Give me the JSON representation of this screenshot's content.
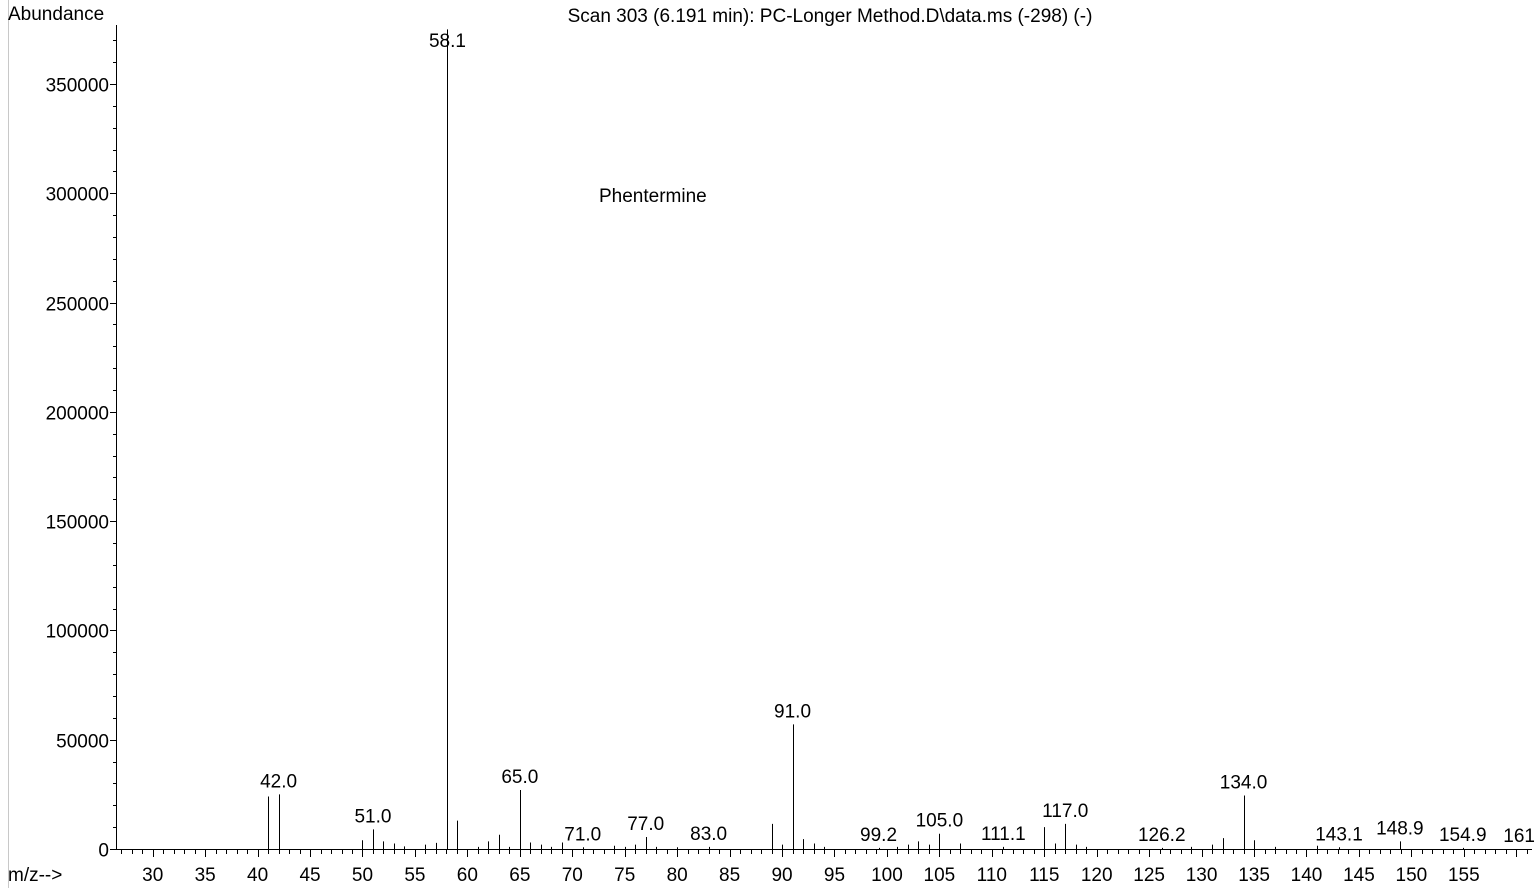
{
  "chart_data": {
    "type": "bar",
    "title": "Scan 303 (6.191 min): PC-Longer Method.D\\data.ms (-298) (-)",
    "ylabel": "Abundance",
    "xlabel": "m/z-->",
    "annotation": "Phentermine",
    "xlim": [
      26.5,
      161.5
    ],
    "ylim": [
      0,
      377000
    ],
    "x_ticks": [
      30,
      35,
      40,
      45,
      50,
      55,
      60,
      65,
      70,
      75,
      80,
      85,
      90,
      95,
      100,
      105,
      110,
      115,
      120,
      125,
      130,
      135,
      140,
      145,
      150,
      155
    ],
    "y_ticks": [
      0,
      50000,
      100000,
      150000,
      200000,
      250000,
      300000,
      350000
    ],
    "peaks": [
      {
        "mz": 41.0,
        "abundance": 24000
      },
      {
        "mz": 42.0,
        "abundance": 25000
      },
      {
        "mz": 50.0,
        "abundance": 4000
      },
      {
        "mz": 51.0,
        "abundance": 9000
      },
      {
        "mz": 52.0,
        "abundance": 3500
      },
      {
        "mz": 53.0,
        "abundance": 2500
      },
      {
        "mz": 54.0,
        "abundance": 1200
      },
      {
        "mz": 56.0,
        "abundance": 2000
      },
      {
        "mz": 57.0,
        "abundance": 2800
      },
      {
        "mz": 58.1,
        "abundance": 375000
      },
      {
        "mz": 59.0,
        "abundance": 13000
      },
      {
        "mz": 61.0,
        "abundance": 1000
      },
      {
        "mz": 62.0,
        "abundance": 3500
      },
      {
        "mz": 63.0,
        "abundance": 6500
      },
      {
        "mz": 64.0,
        "abundance": 1000
      },
      {
        "mz": 65.0,
        "abundance": 27000
      },
      {
        "mz": 66.0,
        "abundance": 3000
      },
      {
        "mz": 67.0,
        "abundance": 2000
      },
      {
        "mz": 68.0,
        "abundance": 1000
      },
      {
        "mz": 69.0,
        "abundance": 3000
      },
      {
        "mz": 71.0,
        "abundance": 800
      },
      {
        "mz": 74.0,
        "abundance": 1500
      },
      {
        "mz": 75.0,
        "abundance": 1000
      },
      {
        "mz": 76.0,
        "abundance": 2000
      },
      {
        "mz": 77.0,
        "abundance": 5500
      },
      {
        "mz": 78.0,
        "abundance": 1000
      },
      {
        "mz": 80.0,
        "abundance": 800
      },
      {
        "mz": 83.0,
        "abundance": 1000
      },
      {
        "mz": 89.0,
        "abundance": 11500
      },
      {
        "mz": 90.0,
        "abundance": 2000
      },
      {
        "mz": 91.0,
        "abundance": 57000
      },
      {
        "mz": 92.0,
        "abundance": 4500
      },
      {
        "mz": 93.0,
        "abundance": 2500
      },
      {
        "mz": 94.0,
        "abundance": 1000
      },
      {
        "mz": 99.2,
        "abundance": 500
      },
      {
        "mz": 101.0,
        "abundance": 1000
      },
      {
        "mz": 102.0,
        "abundance": 2000
      },
      {
        "mz": 103.0,
        "abundance": 3500
      },
      {
        "mz": 104.0,
        "abundance": 2000
      },
      {
        "mz": 105.0,
        "abundance": 7000
      },
      {
        "mz": 107.0,
        "abundance": 2500
      },
      {
        "mz": 111.1,
        "abundance": 1000
      },
      {
        "mz": 115.0,
        "abundance": 10000
      },
      {
        "mz": 116.0,
        "abundance": 2500
      },
      {
        "mz": 117.0,
        "abundance": 11500
      },
      {
        "mz": 118.0,
        "abundance": 2000
      },
      {
        "mz": 119.0,
        "abundance": 1000
      },
      {
        "mz": 126.2,
        "abundance": 500
      },
      {
        "mz": 129.0,
        "abundance": 1000
      },
      {
        "mz": 131.0,
        "abundance": 2000
      },
      {
        "mz": 132.0,
        "abundance": 5000
      },
      {
        "mz": 134.0,
        "abundance": 24500
      },
      {
        "mz": 135.0,
        "abundance": 4000
      },
      {
        "mz": 137.0,
        "abundance": 1000
      },
      {
        "mz": 141.0,
        "abundance": 1500
      },
      {
        "mz": 143.1,
        "abundance": 800
      },
      {
        "mz": 148.9,
        "abundance": 3500
      },
      {
        "mz": 154.9,
        "abundance": 500
      }
    ],
    "peak_labels": [
      {
        "mz": 42.0,
        "text": "42.0"
      },
      {
        "mz": 51.0,
        "text": "51.0"
      },
      {
        "mz": 58.1,
        "text": "58.1"
      },
      {
        "mz": 65.0,
        "text": "65.0"
      },
      {
        "mz": 71.0,
        "text": "71.0"
      },
      {
        "mz": 77.0,
        "text": "77.0"
      },
      {
        "mz": 83.0,
        "text": "83.0"
      },
      {
        "mz": 91.0,
        "text": "91.0"
      },
      {
        "mz": 99.2,
        "text": "99.2"
      },
      {
        "mz": 105.0,
        "text": "105.0"
      },
      {
        "mz": 111.1,
        "text": "111.1"
      },
      {
        "mz": 117.0,
        "text": "117.0"
      },
      {
        "mz": 126.2,
        "text": "126.2"
      },
      {
        "mz": 134.0,
        "text": "134.0"
      },
      {
        "mz": 143.1,
        "text": "143.1"
      },
      {
        "mz": 148.9,
        "text": "148.9"
      },
      {
        "mz": 154.9,
        "text": "154.9"
      },
      {
        "mz": 161.0,
        "text": "161"
      }
    ],
    "grid": false,
    "line_color": "#000000"
  }
}
